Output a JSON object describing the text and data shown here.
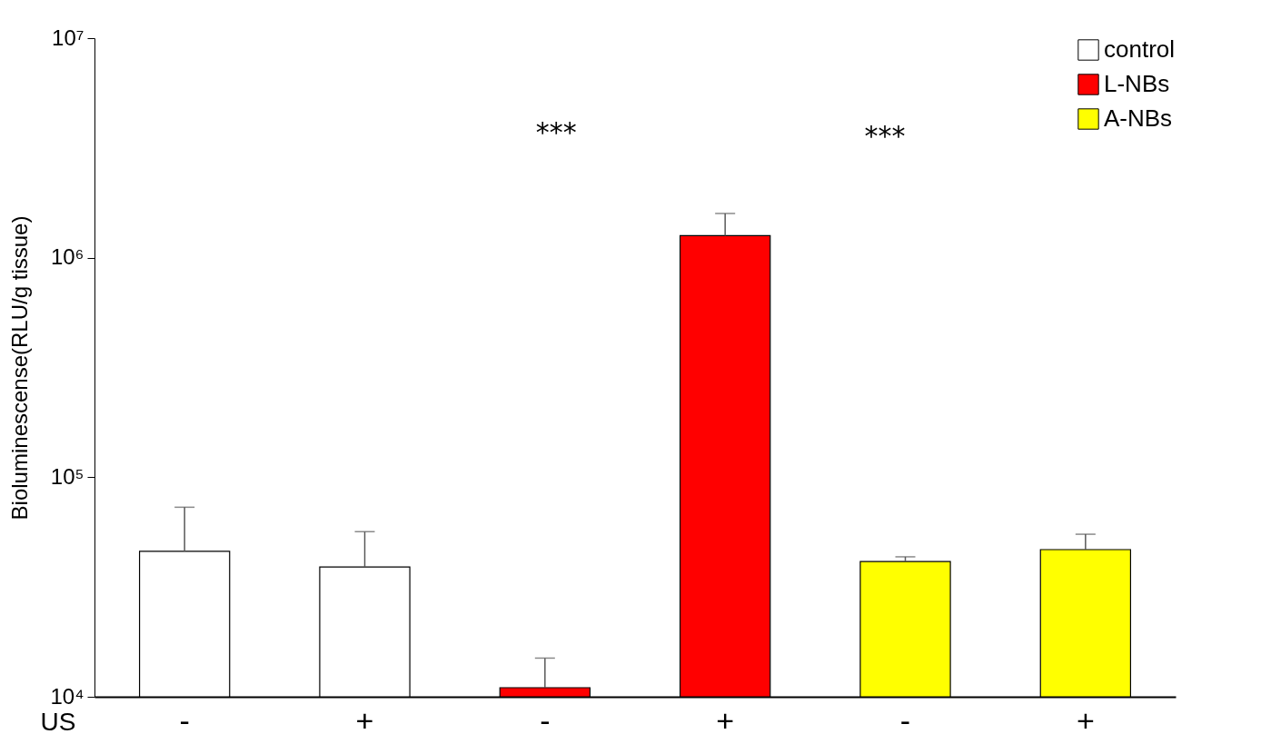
{
  "chart_data": {
    "type": "bar",
    "ylabel": "Bioluminescense(RLU/g tissue)",
    "xlabel": "US",
    "categories": [
      "-",
      "+",
      "-",
      "+",
      "-",
      "+"
    ],
    "series": [
      {
        "name": "control",
        "color": "#ffffff",
        "values": [
          46000,
          39000,
          null,
          null,
          null,
          null
        ],
        "errors": [
          [
            46000,
            73000
          ],
          [
            39000,
            56500
          ],
          null,
          null,
          null,
          null
        ]
      },
      {
        "name": "L-NBs",
        "color": "#ff0000",
        "values": [
          null,
          null,
          11000,
          1260000,
          null,
          null
        ],
        "errors": [
          null,
          null,
          [
            11000,
            15000
          ],
          [
            1260000,
            1590000
          ],
          null,
          null
        ]
      },
      {
        "name": "A-NBs",
        "color": "#ffff00",
        "values": [
          null,
          null,
          null,
          null,
          41300,
          46800
        ],
        "errors": [
          null,
          null,
          null,
          null,
          [
            41300,
            43400
          ],
          [
            46800,
            55000
          ]
        ]
      }
    ],
    "log": true,
    "ylim": [
      10000,
      10000000
    ],
    "yticks": [
      {
        "value": 10000,
        "label": "10⁴"
      },
      {
        "value": 100000,
        "label": "10⁵"
      },
      {
        "value": 1000000,
        "label": "10⁶"
      },
      {
        "value": 10000000,
        "label": "10⁷"
      }
    ],
    "legend": "top right",
    "grid": false,
    "annotations": [
      "***",
      "***"
    ]
  }
}
